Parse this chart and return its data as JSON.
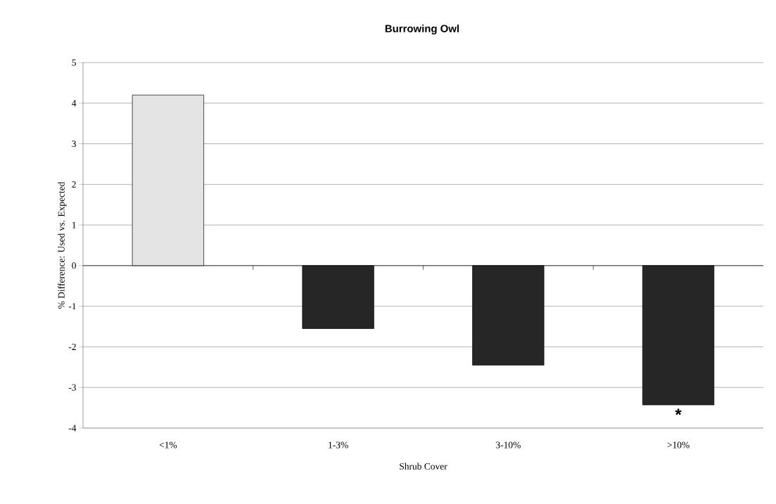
{
  "chart_data": {
    "type": "bar",
    "title": "Burrowing Owl",
    "xlabel": "Shrub Cover",
    "ylabel": "% Difference: Used vs. Expected",
    "categories": [
      "<1%",
      "1-3%",
      "3-10%",
      ">10%"
    ],
    "values": [
      4.2,
      -1.55,
      -2.45,
      -3.43
    ],
    "colors": [
      "#e4e4e4",
      "#262626",
      "#262626",
      "#262626"
    ],
    "ylim": [
      -4,
      5
    ],
    "yticks": [
      -4,
      -3,
      -2,
      -1,
      0,
      1,
      2,
      3,
      4,
      5
    ],
    "grid": "y",
    "annotations": [
      "*"
    ]
  }
}
